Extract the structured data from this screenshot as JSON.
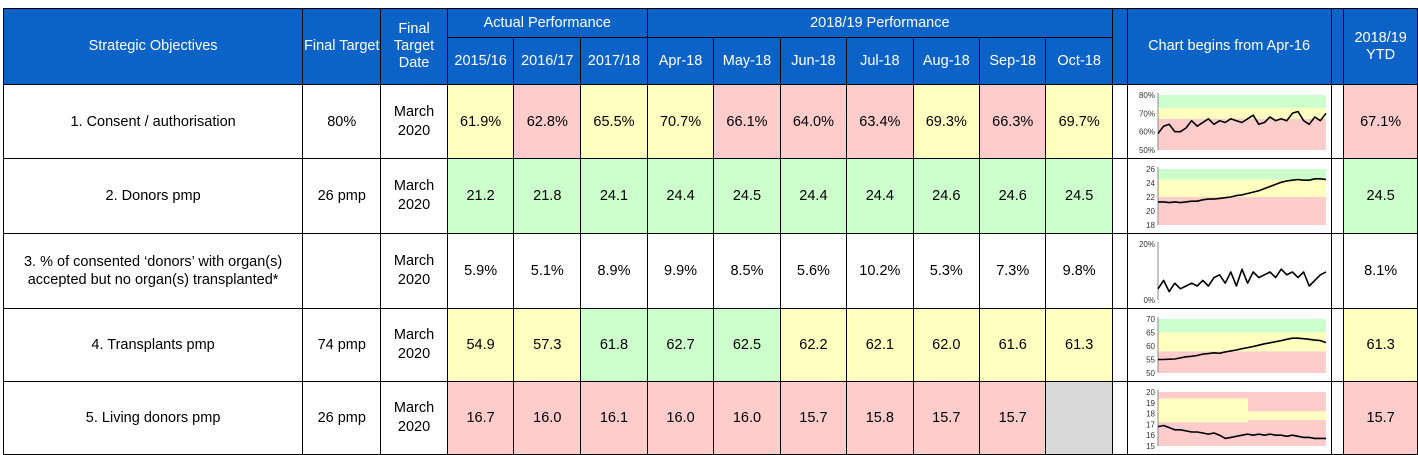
{
  "header": {
    "objectives": "Strategic Objectives",
    "final_target": "Final Target",
    "final_target_date": "Final Target Date",
    "actual_performance": "Actual Performance",
    "perf_2018_19": "2018/19 Performance",
    "chart_begins": "Chart begins from Apr-16",
    "ytd": "2018/19 YTD",
    "periods": [
      "2015/16",
      "2016/17",
      "2017/18",
      "Apr-18",
      "May-18",
      "Jun-18",
      "Jul-18",
      "Aug-18",
      "Sep-18",
      "Oct-18"
    ]
  },
  "colors": {
    "header_bg": "#0b63c8",
    "yellow": "#ffffc0",
    "red": "#ffcccc",
    "green": "#ccffcc",
    "grey": "#d9d9d9"
  },
  "rows": [
    {
      "objective": "1. Consent / authorisation",
      "target": "80%",
      "date": [
        "March",
        "2020"
      ],
      "values": [
        "61.9%",
        "62.8%",
        "65.5%",
        "70.7%",
        "66.1%",
        "64.0%",
        "63.4%",
        "69.3%",
        "66.3%",
        "69.7%"
      ],
      "status": [
        "y",
        "r",
        "y",
        "y",
        "r",
        "r",
        "r",
        "y",
        "r",
        "y"
      ],
      "ytd": "67.1%",
      "ytd_status": "r"
    },
    {
      "objective": "2. Donors pmp",
      "target": "26 pmp",
      "date": [
        "March",
        "2020"
      ],
      "values": [
        "21.2",
        "21.8",
        "24.1",
        "24.4",
        "24.5",
        "24.4",
        "24.4",
        "24.6",
        "24.6",
        "24.5"
      ],
      "status": [
        "g",
        "g",
        "g",
        "g",
        "g",
        "g",
        "g",
        "g",
        "g",
        "g"
      ],
      "ytd": "24.5",
      "ytd_status": "g"
    },
    {
      "objective": "3. % of consented ‘donors’ with organ(s) accepted but no organ(s) transplanted*",
      "target": "",
      "date": [
        "March",
        "2020"
      ],
      "values": [
        "5.9%",
        "5.1%",
        "8.9%",
        "9.9%",
        "8.5%",
        "5.6%",
        "10.2%",
        "5.3%",
        "7.3%",
        "9.8%"
      ],
      "status": [
        "w",
        "w",
        "w",
        "w",
        "w",
        "w",
        "w",
        "w",
        "w",
        "w"
      ],
      "ytd": "8.1%",
      "ytd_status": "w"
    },
    {
      "objective": "4. Transplants pmp",
      "target": "74 pmp",
      "date": [
        "March",
        "2020"
      ],
      "values": [
        "54.9",
        "57.3",
        "61.8",
        "62.7",
        "62.5",
        "62.2",
        "62.1",
        "62.0",
        "61.6",
        "61.3"
      ],
      "status": [
        "y",
        "y",
        "g",
        "g",
        "g",
        "y",
        "y",
        "y",
        "y",
        "y"
      ],
      "ytd": "61.3",
      "ytd_status": "y"
    },
    {
      "objective": "5. Living donors pmp",
      "target": "26 pmp",
      "date": [
        "March",
        "2020"
      ],
      "values": [
        "16.7",
        "16.0",
        "16.1",
        "16.0",
        "16.0",
        "15.7",
        "15.8",
        "15.7",
        "15.7",
        ""
      ],
      "status": [
        "r",
        "r",
        "r",
        "r",
        "r",
        "r",
        "r",
        "r",
        "r",
        "n"
      ],
      "ytd": "15.7",
      "ytd_status": "r"
    }
  ],
  "chart_data": [
    {
      "type": "line",
      "title": "1. Consent / authorisation",
      "y_ticks": [
        "80%",
        "70%",
        "60%",
        "50%"
      ],
      "ylim": [
        50,
        80
      ],
      "bands": {
        "green_above": 73,
        "yellow_above": 67
      },
      "values": [
        59,
        63,
        64,
        60,
        60,
        62,
        66,
        63,
        65,
        67,
        64,
        66,
        65,
        67,
        66,
        65,
        67,
        69,
        64,
        65,
        68,
        66,
        67,
        66,
        70,
        71,
        66,
        64,
        68,
        66,
        70
      ]
    },
    {
      "type": "line",
      "title": "2. Donors pmp",
      "y_ticks": [
        "26",
        "24",
        "22",
        "20",
        "18"
      ],
      "ylim": [
        18,
        26
      ],
      "bands": {
        "green_above": 24.5,
        "yellow_above": 22.0
      },
      "values": [
        21.3,
        21.3,
        21.2,
        21.3,
        21.2,
        21.3,
        21.4,
        21.4,
        21.6,
        21.7,
        21.7,
        21.8,
        21.9,
        22.0,
        22.2,
        22.3,
        22.5,
        22.7,
        22.9,
        23.2,
        23.5,
        23.8,
        24.1,
        24.3,
        24.4,
        24.5,
        24.4,
        24.4,
        24.6,
        24.6,
        24.5
      ]
    },
    {
      "type": "line",
      "title": "3. % of consented donors with organ(s) accepted but no organ(s) transplanted",
      "y_ticks": [
        "20%",
        "0%"
      ],
      "ylim": [
        0,
        20
      ],
      "values": [
        4,
        7,
        3,
        6,
        4,
        5,
        6,
        5,
        7,
        5,
        8,
        9,
        6,
        10,
        5,
        11,
        6,
        10,
        8,
        9,
        10,
        8,
        11,
        9,
        10,
        8,
        10,
        5,
        7,
        9,
        10
      ]
    },
    {
      "type": "line",
      "title": "4. Transplants pmp",
      "y_ticks": [
        "70",
        "65",
        "60",
        "55",
        "50"
      ],
      "ylim": [
        50,
        70
      ],
      "bands": {
        "green_above": 65,
        "yellow_above": 58
      },
      "values": [
        55.0,
        55.0,
        55.1,
        55.2,
        55.6,
        56.0,
        56.2,
        56.5,
        57.0,
        57.2,
        57.5,
        57.3,
        57.8,
        58.2,
        58.5,
        59.0,
        59.4,
        59.8,
        60.3,
        60.8,
        61.2,
        61.6,
        62.0,
        62.5,
        62.9,
        62.9,
        62.7,
        62.5,
        62.2,
        62.0,
        61.3
      ]
    },
    {
      "type": "line",
      "title": "5. Living donors pmp",
      "y_ticks": [
        "20",
        "19",
        "18",
        "17",
        "16",
        "15"
      ],
      "ylim": [
        15,
        20
      ],
      "values": [
        16.8,
        16.9,
        16.7,
        16.5,
        16.5,
        16.4,
        16.3,
        16.3,
        16.2,
        16.1,
        16.2,
        16.0,
        15.7,
        15.8,
        15.9,
        16.0,
        16.1,
        16.0,
        16.1,
        16.0,
        16.1,
        16.0,
        16.0,
        15.9,
        16.0,
        15.9,
        15.8,
        15.8,
        15.7,
        15.7,
        15.7
      ]
    }
  ]
}
